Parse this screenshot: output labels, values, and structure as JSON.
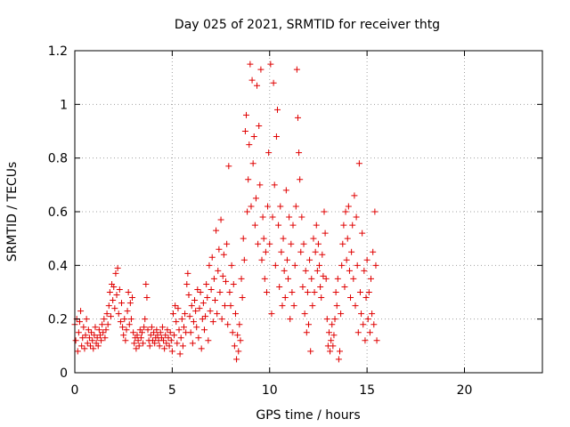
{
  "chart_data": {
    "type": "scatter",
    "title": "Day 025 of 2021, SRMTID for receiver thtg",
    "xlabel": "GPS time / hours",
    "ylabel": "SRMTID / TECUs",
    "xlim": [
      0,
      24
    ],
    "ylim": [
      0,
      1.2
    ],
    "xticks": [
      0,
      5,
      10,
      15,
      20
    ],
    "yticks": [
      0,
      0.2,
      0.4,
      0.6,
      0.8,
      1,
      1.2
    ],
    "xtick_labels": [
      "0",
      "5",
      "10",
      "15",
      "20"
    ],
    "ytick_labels": [
      "0",
      "0.2",
      "0.4",
      "0.6",
      "0.8",
      "1",
      "1.2"
    ],
    "grid": true,
    "marker": "plus",
    "color": "#e00000",
    "series": [
      {
        "name": "thtg",
        "points": [
          [
            0.0,
            0.18
          ],
          [
            0.05,
            0.12
          ],
          [
            0.1,
            0.2
          ],
          [
            0.15,
            0.08
          ],
          [
            0.2,
            0.15
          ],
          [
            0.25,
            0.19
          ],
          [
            0.3,
            0.23
          ],
          [
            0.35,
            0.1
          ],
          [
            0.4,
            0.13
          ],
          [
            0.45,
            0.17
          ],
          [
            0.5,
            0.09
          ],
          [
            0.55,
            0.14
          ],
          [
            0.6,
            0.2
          ],
          [
            0.65,
            0.11
          ],
          [
            0.7,
            0.16
          ],
          [
            0.75,
            0.13
          ],
          [
            0.8,
            0.1
          ],
          [
            0.85,
            0.15
          ],
          [
            0.9,
            0.12
          ],
          [
            0.95,
            0.09
          ],
          [
            1.0,
            0.14
          ],
          [
            1.05,
            0.17
          ],
          [
            1.1,
            0.11
          ],
          [
            1.15,
            0.13
          ],
          [
            1.2,
            0.1
          ],
          [
            1.25,
            0.16
          ],
          [
            1.3,
            0.14
          ],
          [
            1.35,
            0.12
          ],
          [
            1.4,
            0.18
          ],
          [
            1.45,
            0.15
          ],
          [
            1.5,
            0.2
          ],
          [
            1.55,
            0.13
          ],
          [
            1.6,
            0.16
          ],
          [
            1.65,
            0.22
          ],
          [
            1.7,
            0.18
          ],
          [
            1.75,
            0.25
          ],
          [
            1.8,
            0.3
          ],
          [
            1.85,
            0.21
          ],
          [
            1.9,
            0.33
          ],
          [
            1.95,
            0.27
          ],
          [
            2.0,
            0.32
          ],
          [
            2.05,
            0.24
          ],
          [
            2.1,
            0.37
          ],
          [
            2.15,
            0.29
          ],
          [
            2.2,
            0.39
          ],
          [
            2.25,
            0.22
          ],
          [
            2.3,
            0.31
          ],
          [
            2.35,
            0.19
          ],
          [
            2.4,
            0.26
          ],
          [
            2.45,
            0.17
          ],
          [
            2.5,
            0.14
          ],
          [
            2.55,
            0.2
          ],
          [
            2.6,
            0.12
          ],
          [
            2.65,
            0.16
          ],
          [
            2.7,
            0.23
          ],
          [
            2.75,
            0.3
          ],
          [
            2.8,
            0.18
          ],
          [
            2.85,
            0.26
          ],
          [
            2.9,
            0.2
          ],
          [
            2.95,
            0.28
          ],
          [
            3.0,
            0.15
          ],
          [
            3.05,
            0.11
          ],
          [
            3.1,
            0.13
          ],
          [
            3.15,
            0.09
          ],
          [
            3.2,
            0.14
          ],
          [
            3.25,
            0.12
          ],
          [
            3.3,
            0.1
          ],
          [
            3.35,
            0.16
          ],
          [
            3.4,
            0.13
          ],
          [
            3.45,
            0.15
          ],
          [
            3.5,
            0.11
          ],
          [
            3.55,
            0.17
          ],
          [
            3.6,
            0.2
          ],
          [
            3.65,
            0.33
          ],
          [
            3.7,
            0.28
          ],
          [
            3.75,
            0.16
          ],
          [
            3.8,
            0.12
          ],
          [
            3.85,
            0.1
          ],
          [
            3.9,
            0.14
          ],
          [
            3.95,
            0.17
          ],
          [
            4.0,
            0.12
          ],
          [
            4.05,
            0.15
          ],
          [
            4.1,
            0.11
          ],
          [
            4.15,
            0.13
          ],
          [
            4.2,
            0.16
          ],
          [
            4.25,
            0.14
          ],
          [
            4.3,
            0.12
          ],
          [
            4.35,
            0.1
          ],
          [
            4.4,
            0.15
          ],
          [
            4.45,
            0.13
          ],
          [
            4.5,
            0.17
          ],
          [
            4.55,
            0.12
          ],
          [
            4.6,
            0.09
          ],
          [
            4.65,
            0.14
          ],
          [
            4.7,
            0.11
          ],
          [
            4.75,
            0.16
          ],
          [
            4.8,
            0.13
          ],
          [
            4.85,
            0.1
          ],
          [
            4.9,
            0.15
          ],
          [
            4.95,
            0.12
          ],
          [
            5.0,
            0.08
          ],
          [
            5.05,
            0.22
          ],
          [
            5.1,
            0.14
          ],
          [
            5.15,
            0.25
          ],
          [
            5.2,
            0.19
          ],
          [
            5.25,
            0.11
          ],
          [
            5.3,
            0.24
          ],
          [
            5.35,
            0.16
          ],
          [
            5.4,
            0.07
          ],
          [
            5.45,
            0.13
          ],
          [
            5.5,
            0.2
          ],
          [
            5.55,
            0.1
          ],
          [
            5.6,
            0.17
          ],
          [
            5.65,
            0.22
          ],
          [
            5.7,
            0.15
          ],
          [
            5.75,
            0.33
          ],
          [
            5.8,
            0.37
          ],
          [
            5.85,
            0.29
          ],
          [
            5.9,
            0.21
          ],
          [
            5.95,
            0.15
          ],
          [
            6.0,
            0.25
          ],
          [
            6.05,
            0.11
          ],
          [
            6.1,
            0.19
          ],
          [
            6.15,
            0.27
          ],
          [
            6.2,
            0.23
          ],
          [
            6.25,
            0.17
          ],
          [
            6.3,
            0.31
          ],
          [
            6.35,
            0.13
          ],
          [
            6.4,
            0.24
          ],
          [
            6.45,
            0.3
          ],
          [
            6.5,
            0.09
          ],
          [
            6.55,
            0.2
          ],
          [
            6.6,
            0.26
          ],
          [
            6.65,
            0.16
          ],
          [
            6.7,
            0.21
          ],
          [
            6.75,
            0.33
          ],
          [
            6.8,
            0.28
          ],
          [
            6.85,
            0.12
          ],
          [
            6.9,
            0.4
          ],
          [
            6.95,
            0.23
          ],
          [
            7.0,
            0.31
          ],
          [
            7.05,
            0.43
          ],
          [
            7.1,
            0.19
          ],
          [
            7.15,
            0.35
          ],
          [
            7.2,
            0.27
          ],
          [
            7.25,
            0.53
          ],
          [
            7.3,
            0.22
          ],
          [
            7.35,
            0.38
          ],
          [
            7.4,
            0.46
          ],
          [
            7.45,
            0.3
          ],
          [
            7.5,
            0.57
          ],
          [
            7.55,
            0.2
          ],
          [
            7.6,
            0.36
          ],
          [
            7.65,
            0.44
          ],
          [
            7.7,
            0.25
          ],
          [
            7.75,
            0.34
          ],
          [
            7.8,
            0.48
          ],
          [
            7.85,
            0.18
          ],
          [
            7.9,
            0.77
          ],
          [
            7.95,
            0.3
          ],
          [
            8.0,
            0.25
          ],
          [
            8.05,
            0.4
          ],
          [
            8.1,
            0.15
          ],
          [
            8.15,
            0.33
          ],
          [
            8.2,
            0.1
          ],
          [
            8.25,
            0.22
          ],
          [
            8.3,
            0.05
          ],
          [
            8.35,
            0.14
          ],
          [
            8.4,
            0.08
          ],
          [
            8.45,
            0.18
          ],
          [
            8.5,
            0.12
          ],
          [
            8.55,
            0.35
          ],
          [
            8.6,
            0.28
          ],
          [
            8.65,
            0.5
          ],
          [
            8.7,
            0.42
          ],
          [
            8.75,
            0.9
          ],
          [
            8.8,
            0.96
          ],
          [
            8.85,
            0.6
          ],
          [
            8.9,
            0.72
          ],
          [
            8.95,
            0.85
          ],
          [
            9.0,
            1.15
          ],
          [
            9.05,
            0.62
          ],
          [
            9.1,
            1.09
          ],
          [
            9.15,
            0.78
          ],
          [
            9.2,
            0.88
          ],
          [
            9.25,
            0.55
          ],
          [
            9.3,
            0.65
          ],
          [
            9.35,
            1.07
          ],
          [
            9.4,
            0.48
          ],
          [
            9.45,
            0.92
          ],
          [
            9.5,
            0.7
          ],
          [
            9.55,
            1.13
          ],
          [
            9.6,
            0.42
          ],
          [
            9.65,
            0.58
          ],
          [
            9.7,
            0.5
          ],
          [
            9.75,
            0.35
          ],
          [
            9.8,
            0.45
          ],
          [
            9.85,
            0.3
          ],
          [
            9.9,
            0.62
          ],
          [
            9.95,
            0.82
          ],
          [
            10.0,
            0.48
          ],
          [
            10.05,
            1.15
          ],
          [
            10.1,
            0.22
          ],
          [
            10.15,
            0.58
          ],
          [
            10.2,
            1.08
          ],
          [
            10.25,
            0.7
          ],
          [
            10.3,
            0.4
          ],
          [
            10.35,
            0.88
          ],
          [
            10.4,
            0.98
          ],
          [
            10.45,
            0.55
          ],
          [
            10.5,
            0.32
          ],
          [
            10.55,
            0.62
          ],
          [
            10.6,
            0.45
          ],
          [
            10.65,
            0.25
          ],
          [
            10.7,
            0.5
          ],
          [
            10.75,
            0.38
          ],
          [
            10.8,
            0.28
          ],
          [
            10.85,
            0.68
          ],
          [
            10.9,
            0.42
          ],
          [
            10.95,
            0.35
          ],
          [
            11.0,
            0.58
          ],
          [
            11.05,
            0.2
          ],
          [
            11.1,
            0.48
          ],
          [
            11.15,
            0.3
          ],
          [
            11.2,
            0.55
          ],
          [
            11.25,
            0.25
          ],
          [
            11.3,
            0.4
          ],
          [
            11.35,
            0.62
          ],
          [
            11.4,
            1.13
          ],
          [
            11.45,
            0.95
          ],
          [
            11.5,
            0.82
          ],
          [
            11.55,
            0.72
          ],
          [
            11.6,
            0.45
          ],
          [
            11.65,
            0.58
          ],
          [
            11.7,
            0.32
          ],
          [
            11.75,
            0.48
          ],
          [
            11.8,
            0.22
          ],
          [
            11.85,
            0.38
          ],
          [
            11.9,
            0.15
          ],
          [
            11.95,
            0.3
          ],
          [
            12.0,
            0.18
          ],
          [
            12.05,
            0.42
          ],
          [
            12.1,
            0.08
          ],
          [
            12.15,
            0.35
          ],
          [
            12.2,
            0.25
          ],
          [
            12.25,
            0.5
          ],
          [
            12.3,
            0.3
          ],
          [
            12.35,
            0.45
          ],
          [
            12.4,
            0.55
          ],
          [
            12.45,
            0.38
          ],
          [
            12.5,
            0.48
          ],
          [
            12.55,
            0.4
          ],
          [
            12.6,
            0.32
          ],
          [
            12.65,
            0.28
          ],
          [
            12.7,
            0.44
          ],
          [
            12.75,
            0.36
          ],
          [
            12.8,
            0.6
          ],
          [
            12.85,
            0.52
          ],
          [
            12.9,
            0.35
          ],
          [
            12.95,
            0.2
          ],
          [
            13.0,
            0.1
          ],
          [
            13.05,
            0.15
          ],
          [
            13.1,
            0.08
          ],
          [
            13.15,
            0.12
          ],
          [
            13.2,
            0.18
          ],
          [
            13.25,
            0.1
          ],
          [
            13.3,
            0.14
          ],
          [
            13.35,
            0.2
          ],
          [
            13.4,
            0.3
          ],
          [
            13.45,
            0.25
          ],
          [
            13.5,
            0.35
          ],
          [
            13.55,
            0.05
          ],
          [
            13.6,
            0.08
          ],
          [
            13.65,
            0.22
          ],
          [
            13.7,
            0.4
          ],
          [
            13.75,
            0.48
          ],
          [
            13.8,
            0.55
          ],
          [
            13.85,
            0.32
          ],
          [
            13.9,
            0.6
          ],
          [
            13.95,
            0.42
          ],
          [
            14.0,
            0.5
          ],
          [
            14.05,
            0.62
          ],
          [
            14.1,
            0.38
          ],
          [
            14.15,
            0.28
          ],
          [
            14.2,
            0.45
          ],
          [
            14.25,
            0.55
          ],
          [
            14.3,
            0.35
          ],
          [
            14.35,
            0.66
          ],
          [
            14.4,
            0.25
          ],
          [
            14.45,
            0.58
          ],
          [
            14.5,
            0.4
          ],
          [
            14.55,
            0.15
          ],
          [
            14.6,
            0.78
          ],
          [
            14.65,
            0.3
          ],
          [
            14.7,
            0.22
          ],
          [
            14.75,
            0.52
          ],
          [
            14.8,
            0.18
          ],
          [
            14.85,
            0.38
          ],
          [
            14.9,
            0.12
          ],
          [
            14.95,
            0.28
          ],
          [
            15.0,
            0.42
          ],
          [
            15.05,
            0.2
          ],
          [
            15.1,
            0.3
          ],
          [
            15.15,
            0.15
          ],
          [
            15.2,
            0.35
          ],
          [
            15.25,
            0.22
          ],
          [
            15.3,
            0.45
          ],
          [
            15.35,
            0.18
          ],
          [
            15.4,
            0.6
          ],
          [
            15.45,
            0.4
          ],
          [
            15.5,
            0.12
          ]
        ]
      }
    ]
  }
}
